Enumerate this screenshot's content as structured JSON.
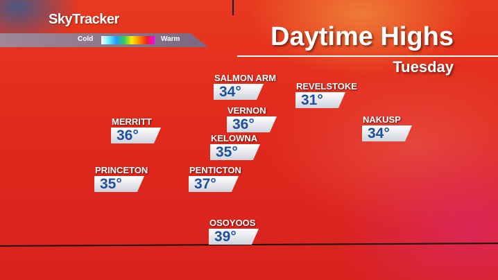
{
  "brand": "SkyTracker",
  "legend": {
    "cold": "Cold",
    "warm": "Warm"
  },
  "title": "Daytime Highs",
  "day": "Tuesday",
  "cities": [
    {
      "name": "SALMON ARM",
      "temp": "34°"
    },
    {
      "name": "REVELSTOKE",
      "temp": "31°"
    },
    {
      "name": "VERNON",
      "temp": "36°"
    },
    {
      "name": "MERRITT",
      "temp": "36°"
    },
    {
      "name": "NAKUSP",
      "temp": "34°"
    },
    {
      "name": "KELOWNA",
      "temp": "35°"
    },
    {
      "name": "PRINCETON",
      "temp": "35°"
    },
    {
      "name": "PENTICTON",
      "temp": "37°"
    },
    {
      "name": "OSOYOOS",
      "temp": "39°"
    }
  ]
}
